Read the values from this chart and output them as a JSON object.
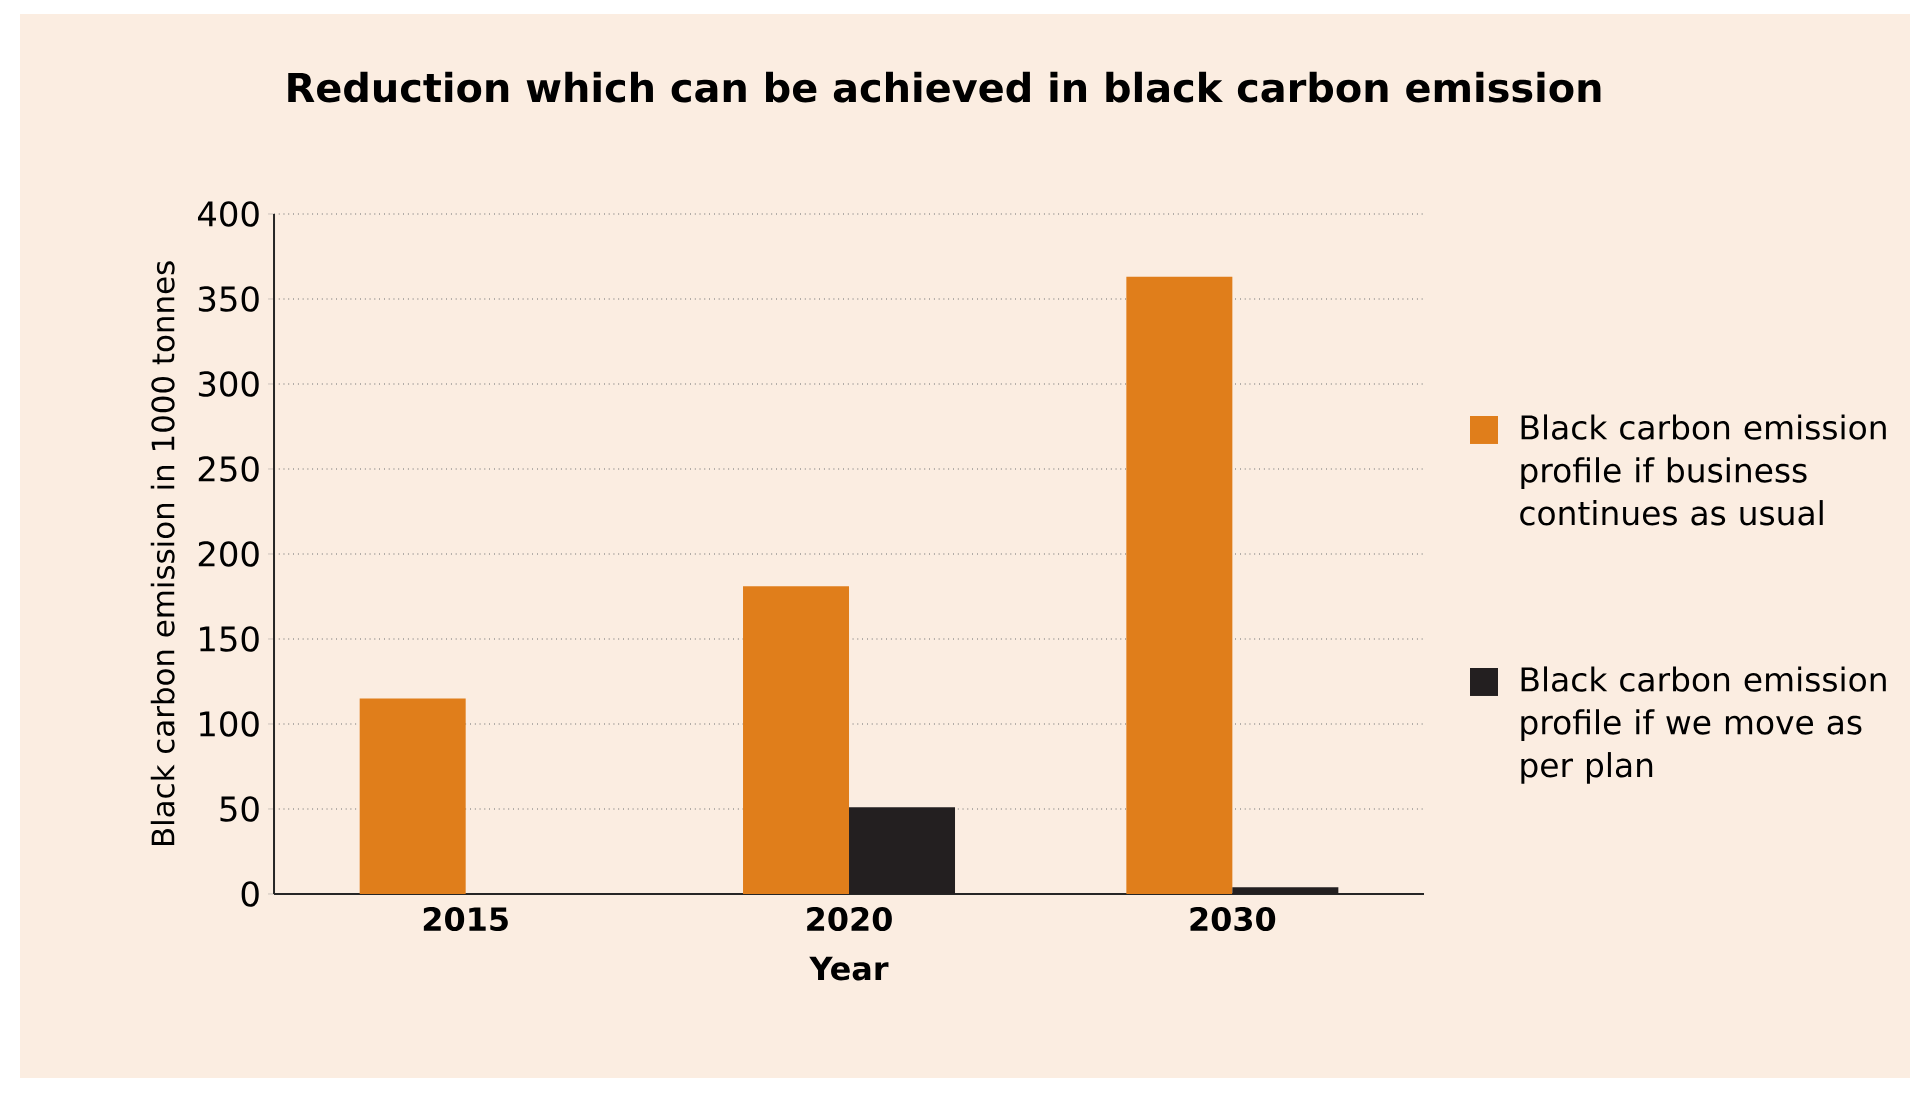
{
  "chart_data": {
    "type": "bar",
    "title": "Reduction which can be achieved in black carbon emission",
    "xlabel": "Year",
    "ylabel": "Black carbon  emission in 1000 tonnes",
    "categories": [
      "2015",
      "2020",
      "2030"
    ],
    "series": [
      {
        "name": "Black carbon emission profile if business continues as usual",
        "color": "#e07e1b",
        "values": [
          115,
          181,
          363
        ]
      },
      {
        "name": "Black carbon emission profile if we move as per plan",
        "color": "#231f20",
        "values": [
          null,
          51,
          4
        ]
      }
    ],
    "ylim": [
      0,
      400
    ],
    "yticks": [
      0,
      50,
      100,
      150,
      200,
      250,
      300,
      350,
      400
    ],
    "grid": "y",
    "legend": "right"
  }
}
